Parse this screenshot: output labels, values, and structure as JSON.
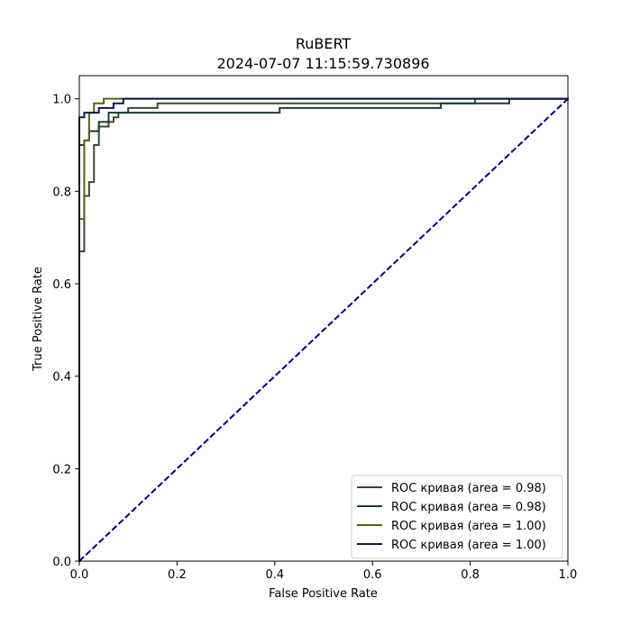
{
  "chart_data": {
    "type": "line",
    "title": "RuBERT",
    "subtitle": "2024-07-07 11:15:59.730896",
    "xlabel": "False Positive Rate",
    "ylabel": "True Positive Rate",
    "xlim": [
      0.0,
      1.0
    ],
    "ylim": [
      0.0,
      1.05
    ],
    "xticks": [
      "0.0",
      "0.2",
      "0.4",
      "0.6",
      "0.8",
      "1.0"
    ],
    "yticks": [
      "0.0",
      "0.2",
      "0.4",
      "0.6",
      "0.8",
      "1.0"
    ],
    "grid": false,
    "legend_position": "lower-right",
    "series": [
      {
        "name": "ROC кривая (area = 0.98)",
        "color": "#3b4a2a",
        "x": [
          0.0,
          0.0,
          0.0,
          0.01,
          0.01,
          0.02,
          0.02,
          0.03,
          0.03,
          0.04,
          0.04,
          0.06,
          0.06,
          0.07,
          0.07,
          0.08,
          0.08,
          0.1,
          0.1,
          0.16,
          0.16,
          0.81,
          0.81,
          1.0
        ],
        "y": [
          0.0,
          0.67,
          0.67,
          0.67,
          0.79,
          0.79,
          0.82,
          0.82,
          0.9,
          0.9,
          0.94,
          0.94,
          0.95,
          0.95,
          0.96,
          0.96,
          0.97,
          0.97,
          0.98,
          0.98,
          0.99,
          0.99,
          1.0,
          1.0
        ]
      },
      {
        "name": "ROC кривая (area = 0.98)",
        "color": "#173d3a",
        "x": [
          0.0,
          0.0,
          0.01,
          0.01,
          0.02,
          0.02,
          0.04,
          0.04,
          0.06,
          0.06,
          0.41,
          0.41,
          0.74,
          0.74,
          0.88,
          0.88,
          1.0
        ],
        "y": [
          0.0,
          0.9,
          0.9,
          0.91,
          0.91,
          0.93,
          0.93,
          0.95,
          0.95,
          0.97,
          0.97,
          0.98,
          0.98,
          0.99,
          0.99,
          1.0,
          1.0
        ]
      },
      {
        "name": "ROC кривая (area = 1.00)",
        "color": "#5a6214",
        "x": [
          0.0,
          0.0,
          0.01,
          0.01,
          0.02,
          0.02,
          0.03,
          0.03,
          0.05,
          0.05,
          0.09,
          0.09,
          1.0
        ],
        "y": [
          0.0,
          0.74,
          0.74,
          0.91,
          0.91,
          0.97,
          0.97,
          0.99,
          0.99,
          1.0,
          1.0,
          1.0,
          1.0
        ]
      },
      {
        "name": "ROC кривая (area = 1.00)",
        "color": "#0c1a4d",
        "x": [
          0.0,
          0.0,
          0.01,
          0.01,
          0.04,
          0.04,
          0.07,
          0.07,
          0.09,
          0.09,
          1.0
        ],
        "y": [
          0.0,
          0.96,
          0.96,
          0.97,
          0.97,
          0.98,
          0.98,
          0.99,
          0.99,
          1.0,
          1.0
        ]
      }
    ],
    "reference_line": {
      "color": "#000080",
      "style": "dashed",
      "x": [
        0.0,
        1.0
      ],
      "y": [
        0.0,
        1.0
      ]
    }
  }
}
